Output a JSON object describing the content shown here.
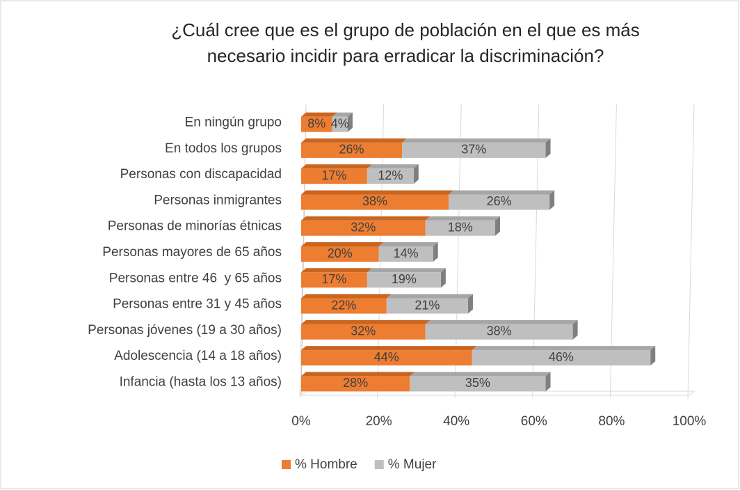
{
  "chart_data": {
    "type": "stacked-barh",
    "title": [
      "¿Cuál cree que es el grupo de población en el que es más",
      "necesario incidir para erradicar la discriminación?"
    ],
    "categories": [
      "En ningún grupo",
      "En todos los grupos",
      "Personas con discapacidad",
      "Personas inmigrantes",
      "Personas de minorías étnicas",
      "Personas mayores de 65 años",
      "Personas entre 46  y 65 años",
      "Personas entre 31 y 45 años",
      "Personas jóvenes (19 a 30 años)",
      "Adolescencia (14 a 18 años)",
      "Infancia (hasta los 13 años)"
    ],
    "series": [
      {
        "name": "% Hombre",
        "color": "#ED7D31",
        "top_color": "#C9651F",
        "values": [
          8,
          26,
          17,
          38,
          32,
          20,
          17,
          22,
          32,
          44,
          28
        ],
        "value_labels": [
          "8%",
          "26%",
          "17%",
          "38%",
          "32%",
          "20%",
          "17%",
          "22%",
          "32%",
          "44%",
          "28%"
        ]
      },
      {
        "name": "% Mujer",
        "color": "#BFBFBF",
        "top_color": "#A6A6A6",
        "values": [
          4,
          37,
          12,
          26,
          18,
          14,
          19,
          21,
          38,
          46,
          35
        ],
        "value_labels": [
          "4%",
          "37%",
          "12%",
          "26%",
          "18%",
          "14%",
          "19%",
          "21%",
          "38%",
          "46%",
          "35%"
        ]
      }
    ],
    "xlim": [
      0,
      100
    ],
    "xticks": [
      {
        "value": 0,
        "label": "0%"
      },
      {
        "value": 20,
        "label": "20%"
      },
      {
        "value": 40,
        "label": "40%"
      },
      {
        "value": 60,
        "label": "60%"
      },
      {
        "value": 80,
        "label": "80%"
      },
      {
        "value": 100,
        "label": "100%"
      }
    ],
    "grid": true,
    "legend": "bottom"
  }
}
